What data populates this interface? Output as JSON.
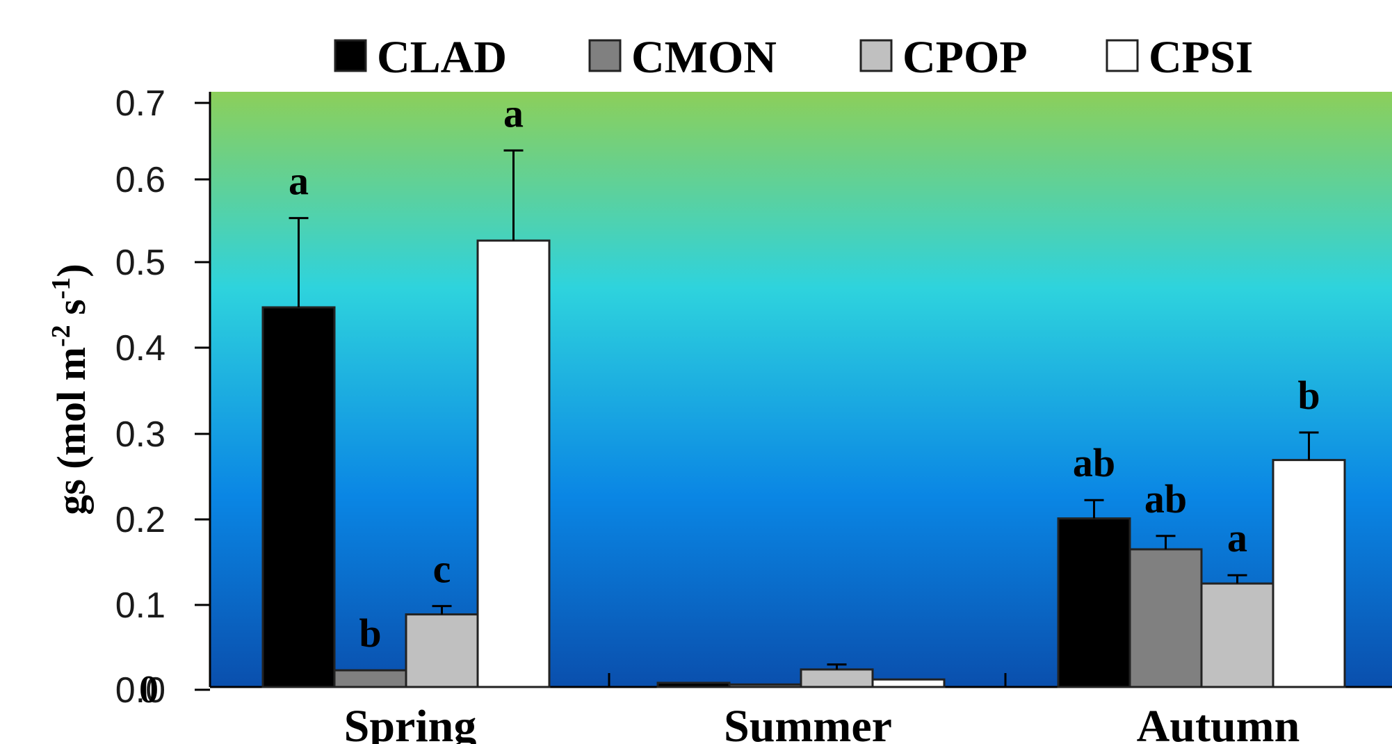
{
  "chart_data": {
    "type": "bar",
    "title": "",
    "ylabel_main": "gs (mol m",
    "ylabel_sup1": "-2",
    "ylabel_mid": " s",
    "ylabel_sup2": "-1",
    "ylabel_end": ")",
    "xlabel": "",
    "categories": [
      "Spring",
      "Summer",
      "Autumn"
    ],
    "y_ticks": [
      "0.7",
      "0.6",
      "0.5",
      "0.4",
      "0.3",
      "0.2",
      "0.1",
      "0.0",
      "0"
    ],
    "ylim": [
      0,
      0.7
    ],
    "grid": false,
    "legend_position": "top",
    "series": [
      {
        "name": "CLAD",
        "color": "#000000",
        "values": [
          0.455,
          0.005,
          0.202
        ],
        "errors": [
          0.107,
          0.0,
          0.022
        ],
        "annotations": [
          "a",
          "",
          "ab"
        ]
      },
      {
        "name": "CMON",
        "color": "#808080",
        "values": [
          0.02,
          0.003,
          0.165
        ],
        "errors": [
          0.0,
          0.0,
          0.016
        ],
        "annotations": [
          "b",
          "",
          "ab"
        ]
      },
      {
        "name": "CPOP",
        "color": "#c0c0c0",
        "values": [
          0.087,
          0.021,
          0.124
        ],
        "errors": [
          0.01,
          0.006,
          0.01
        ],
        "annotations": [
          "c",
          "",
          "a"
        ]
      },
      {
        "name": "CPSI",
        "color": "#ffffff",
        "values": [
          0.535,
          0.009,
          0.272
        ],
        "errors": [
          0.108,
          0.0,
          0.033
        ],
        "annotations": [
          "a",
          "",
          "b"
        ]
      }
    ],
    "colors": {
      "gradient_top": "#8ccf5a",
      "gradient_upper": "#2ed3dd",
      "gradient_mid": "#0a86e4",
      "gradient_bottom": "#0a4fad",
      "bar_stroke": "#222222"
    }
  }
}
